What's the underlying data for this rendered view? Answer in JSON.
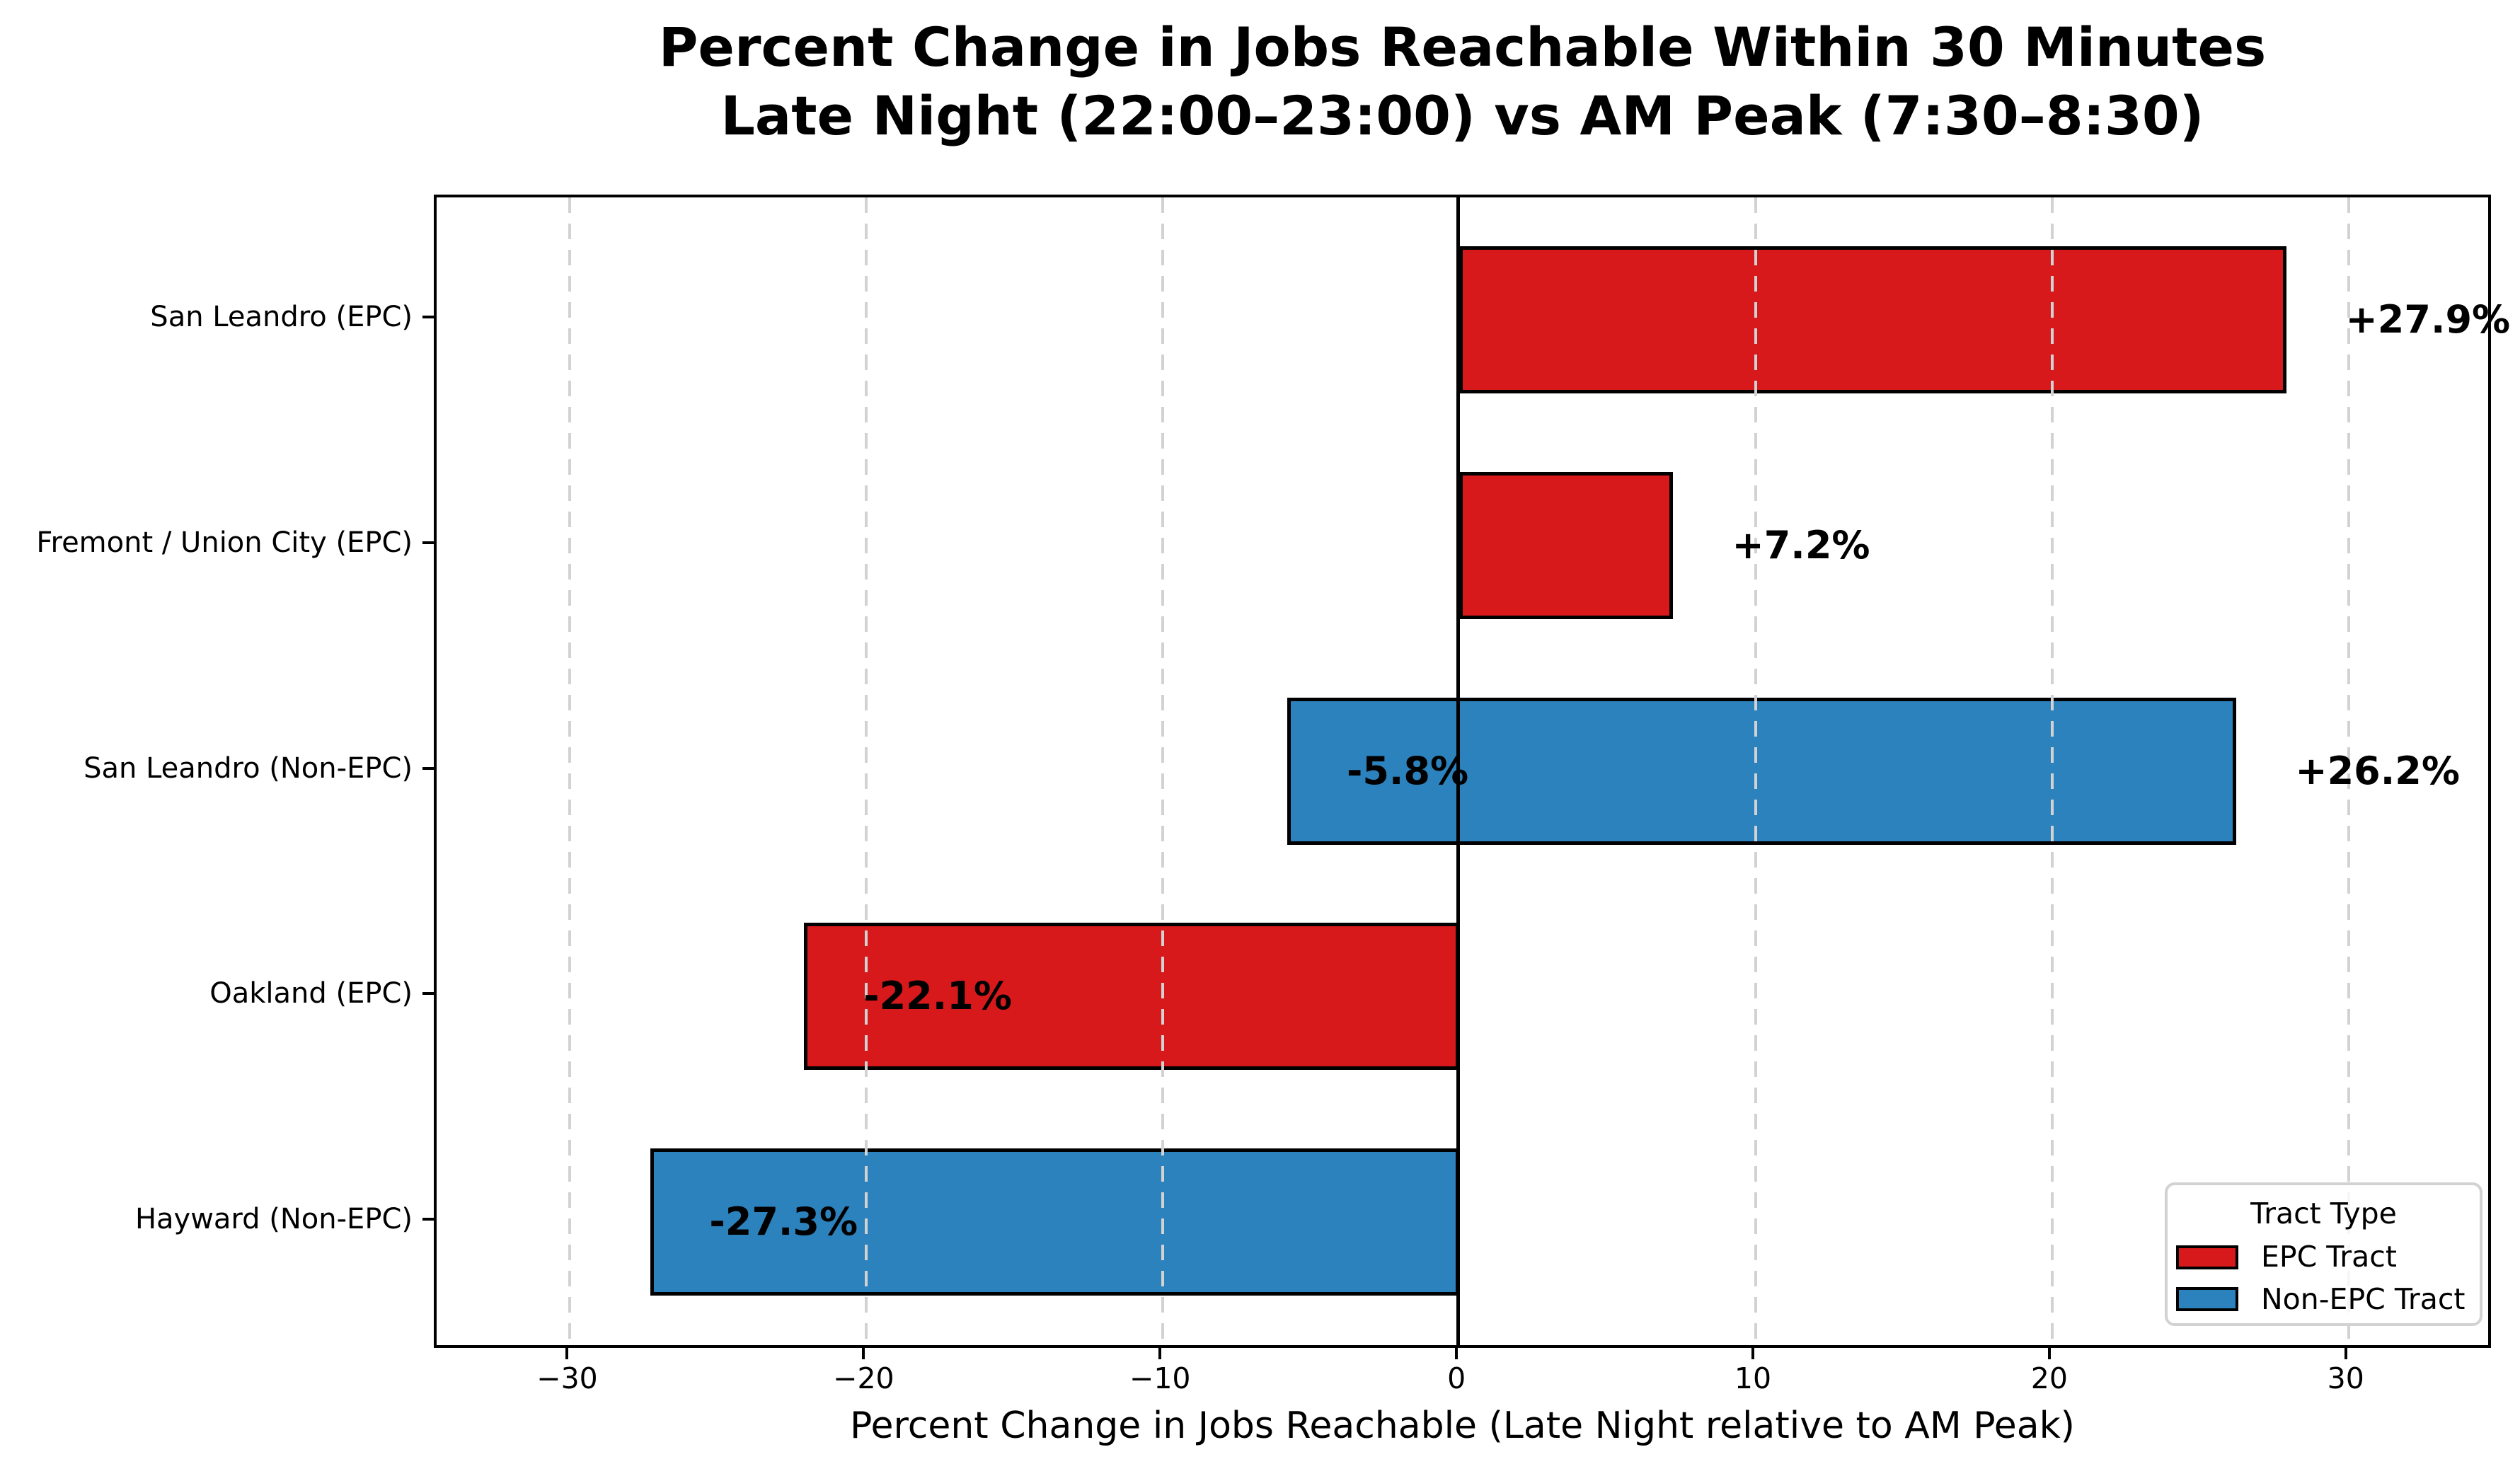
{
  "chart_data": {
    "type": "bar",
    "orientation": "horizontal",
    "title_line1": "Percent Change in Jobs Reachable Within 30 Minutes",
    "title_line2": "Late Night (22:00–23:00) vs AM Peak (7:30–8:30)",
    "xlabel": "Percent Change in Jobs Reachable (Late Night relative to AM Peak)",
    "xlim": [
      -34.5,
      34.9
    ],
    "xticks": [
      -30,
      -20,
      -10,
      0,
      10,
      20,
      30
    ],
    "xtick_labels": [
      "−30",
      "−20",
      "−10",
      "0",
      "10",
      "20",
      "30"
    ],
    "grid": {
      "axis": "x",
      "style": "dashed",
      "color": "#d2d2d2"
    },
    "zero_line_color": "#000000",
    "bar_edge_color": "#000000",
    "categories": [
      "San Leandro (EPC)",
      "Fremont / Union City (EPC)",
      "San Leandro (Non-EPC)",
      "Oakland (EPC)",
      "Hayward (Non-EPC)"
    ],
    "rows": [
      {
        "category": "San Leandro (EPC)",
        "tract_type": "EPC Tract",
        "color": "#d7191c",
        "segments": [
          {
            "from": 0,
            "to": 27.9
          }
        ],
        "value_labels": [
          {
            "text": "+27.9%",
            "x": 29.9
          }
        ]
      },
      {
        "category": "Fremont / Union City (EPC)",
        "tract_type": "EPC Tract",
        "color": "#d7191c",
        "segments": [
          {
            "from": 0,
            "to": 7.2
          }
        ],
        "value_labels": [
          {
            "text": "+7.2%",
            "x": 9.2
          }
        ]
      },
      {
        "category": "San Leandro (Non-EPC)",
        "tract_type": "Non-EPC Tract",
        "color": "#2c82bc",
        "segments": [
          {
            "from": -5.8,
            "to": 26.2
          }
        ],
        "value_labels": [
          {
            "text": "-5.8%",
            "x": -3.8
          },
          {
            "text": "+26.2%",
            "x": 28.2
          }
        ]
      },
      {
        "category": "Oakland (EPC)",
        "tract_type": "EPC Tract",
        "color": "#d7191c",
        "segments": [
          {
            "from": -22.1,
            "to": 0
          }
        ],
        "value_labels": [
          {
            "text": "-22.1%",
            "x": -20.1
          }
        ]
      },
      {
        "category": "Hayward (Non-EPC)",
        "tract_type": "Non-EPC Tract",
        "color": "#2c82bc",
        "segments": [
          {
            "from": -27.3,
            "to": 0
          }
        ],
        "value_labels": [
          {
            "text": "-27.3%",
            "x": -25.3
          }
        ]
      }
    ],
    "legend": {
      "title": "Tract Type",
      "position": "lower right",
      "entries": [
        {
          "label": "EPC Tract",
          "color": "#d7191c"
        },
        {
          "label": "Non-EPC Tract",
          "color": "#2c82bc"
        }
      ]
    }
  }
}
